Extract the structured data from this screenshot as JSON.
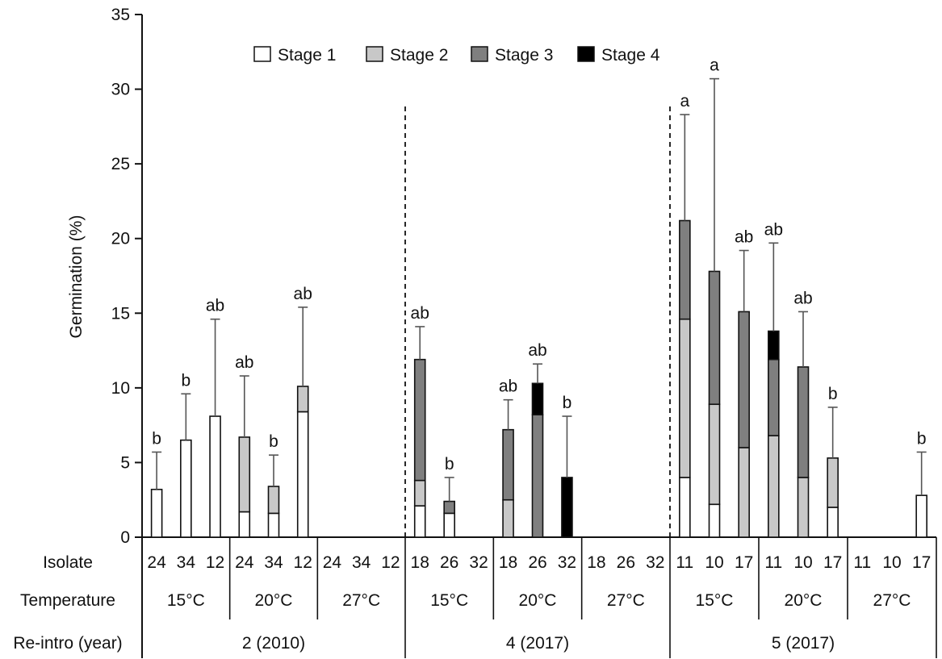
{
  "chart_data": {
    "type": "bar",
    "stacked": true,
    "ylabel": "Germination (%)",
    "ylim": [
      0,
      35
    ],
    "yticks": [
      "0",
      "5",
      "10",
      "15",
      "20",
      "25",
      "30",
      "35"
    ],
    "legend": {
      "placement": "top-center",
      "entries": [
        {
          "label": "Stage 1",
          "color": "#ffffff"
        },
        {
          "label": "Stage 2",
          "color": "#c8c8c8"
        },
        {
          "label": "Stage 3",
          "color": "#7f7f7f"
        },
        {
          "label": "Stage 4",
          "color": "#000000"
        }
      ]
    },
    "row_labels": {
      "isolate": "Isolate",
      "temperature": "Temperature",
      "reintro": "Re-intro (year)"
    },
    "groups": [
      {
        "reintro": "2 (2010)",
        "temperatures": [
          {
            "label": "15°C",
            "bars": [
              {
                "isolate": "24",
                "stages": [
                  3.2,
                  0,
                  0,
                  0
                ],
                "error_top": 5.7,
                "letter": "b"
              },
              {
                "isolate": "34",
                "stages": [
                  6.5,
                  0,
                  0,
                  0
                ],
                "error_top": 9.6,
                "letter": "b"
              },
              {
                "isolate": "12",
                "stages": [
                  8.1,
                  0,
                  0,
                  0
                ],
                "error_top": 14.6,
                "letter": "ab"
              }
            ]
          },
          {
            "label": "20°C",
            "bars": [
              {
                "isolate": "24",
                "stages": [
                  1.7,
                  5.0,
                  0,
                  0
                ],
                "error_top": 10.8,
                "letter": "ab"
              },
              {
                "isolate": "34",
                "stages": [
                  1.6,
                  1.8,
                  0,
                  0
                ],
                "error_top": 5.5,
                "letter": "b"
              },
              {
                "isolate": "12",
                "stages": [
                  8.4,
                  1.7,
                  0,
                  0
                ],
                "error_top": 15.4,
                "letter": "ab"
              }
            ]
          },
          {
            "label": "27°C",
            "bars": [
              {
                "isolate": "24",
                "stages": [
                  0,
                  0,
                  0,
                  0
                ],
                "error_top": null,
                "letter": ""
              },
              {
                "isolate": "34",
                "stages": [
                  0,
                  0,
                  0,
                  0
                ],
                "error_top": null,
                "letter": ""
              },
              {
                "isolate": "12",
                "stages": [
                  0,
                  0,
                  0,
                  0
                ],
                "error_top": null,
                "letter": ""
              }
            ]
          }
        ]
      },
      {
        "reintro": "4 (2017)",
        "temperatures": [
          {
            "label": "15°C",
            "bars": [
              {
                "isolate": "18",
                "stages": [
                  2.1,
                  1.7,
                  8.1,
                  0
                ],
                "error_top": 14.1,
                "letter": "ab"
              },
              {
                "isolate": "26",
                "stages": [
                  1.6,
                  0,
                  0.8,
                  0
                ],
                "error_top": 4.0,
                "letter": "b"
              },
              {
                "isolate": "32",
                "stages": [
                  0,
                  0,
                  0,
                  0
                ],
                "error_top": null,
                "letter": ""
              }
            ]
          },
          {
            "label": "20°C",
            "bars": [
              {
                "isolate": "18",
                "stages": [
                  0,
                  2.5,
                  4.7,
                  0
                ],
                "error_top": 9.2,
                "letter": "ab"
              },
              {
                "isolate": "26",
                "stages": [
                  0,
                  0,
                  8.2,
                  2.1
                ],
                "error_top": 11.6,
                "letter": "ab"
              },
              {
                "isolate": "32",
                "stages": [
                  0,
                  0,
                  0,
                  4.0
                ],
                "error_top": 8.1,
                "letter": "b"
              }
            ]
          },
          {
            "label": "27°C",
            "bars": [
              {
                "isolate": "18",
                "stages": [
                  0,
                  0,
                  0,
                  0
                ],
                "error_top": null,
                "letter": ""
              },
              {
                "isolate": "26",
                "stages": [
                  0,
                  0,
                  0,
                  0
                ],
                "error_top": null,
                "letter": ""
              },
              {
                "isolate": "32",
                "stages": [
                  0,
                  0,
                  0,
                  0
                ],
                "error_top": null,
                "letter": ""
              }
            ]
          }
        ]
      },
      {
        "reintro": "5 (2017)",
        "temperatures": [
          {
            "label": "15°C",
            "bars": [
              {
                "isolate": "11",
                "stages": [
                  4.0,
                  10.6,
                  6.6,
                  0
                ],
                "error_top": 28.3,
                "letter": "a"
              },
              {
                "isolate": "10",
                "stages": [
                  2.2,
                  6.7,
                  8.9,
                  0
                ],
                "error_top": 30.7,
                "letter": "a"
              },
              {
                "isolate": "17",
                "stages": [
                  0,
                  6.0,
                  9.1,
                  0
                ],
                "error_top": 19.2,
                "letter": "ab"
              }
            ]
          },
          {
            "label": "20°C",
            "bars": [
              {
                "isolate": "11",
                "stages": [
                  0,
                  6.8,
                  5.1,
                  1.9
                ],
                "error_top": 19.7,
                "letter": "ab"
              },
              {
                "isolate": "10",
                "stages": [
                  0,
                  4.0,
                  7.4,
                  0
                ],
                "error_top": 15.1,
                "letter": "ab"
              },
              {
                "isolate": "17",
                "stages": [
                  2.0,
                  3.3,
                  0,
                  0
                ],
                "error_top": 8.7,
                "letter": "b"
              }
            ]
          },
          {
            "label": "27°C",
            "bars": [
              {
                "isolate": "11",
                "stages": [
                  0,
                  0,
                  0,
                  0
                ],
                "error_top": null,
                "letter": ""
              },
              {
                "isolate": "10",
                "stages": [
                  0,
                  0,
                  0,
                  0
                ],
                "error_top": null,
                "letter": ""
              },
              {
                "isolate": "17",
                "stages": [
                  2.8,
                  0,
                  0,
                  0
                ],
                "error_top": 5.7,
                "letter": "b"
              }
            ]
          }
        ]
      }
    ],
    "group_separators": "dashed"
  }
}
